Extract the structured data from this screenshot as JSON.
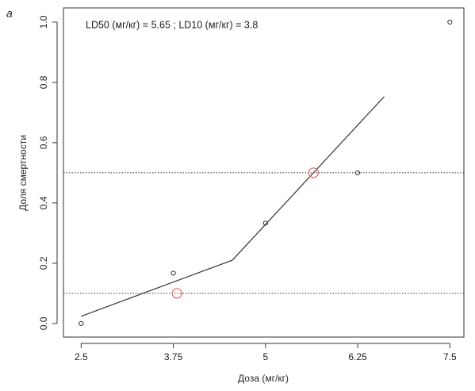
{
  "chart_data": {
    "type": "scatter",
    "panel_label": "a",
    "annotation": "LD50 (мг/кг) = 5.65 ; LD10 (мг/кг) = 3.8",
    "x_label": "Доза (мг/кг)",
    "y_label": "Доля смертности",
    "xlim": [
      2.26,
      7.69
    ],
    "ylim": [
      -0.045,
      1.047
    ],
    "xticks": [
      2.5,
      3.75,
      5,
      6.25,
      7.5
    ],
    "yticks": [
      {
        "value": 0,
        "label": "0.0"
      },
      0.2,
      0.4,
      0.6,
      0.8,
      {
        "value": 1,
        "label": "1.0"
      }
    ],
    "points": {
      "x": [
        2.5,
        3.75,
        5,
        6.25,
        7.5
      ],
      "values": [
        0,
        0.167,
        0.333,
        0.5,
        1.0
      ],
      "color": "#333333"
    },
    "fit": {
      "x": [
        2.5,
        4.55,
        6.61
      ],
      "values": [
        0.024,
        0.21,
        0.753
      ],
      "color": "#333333"
    },
    "ld_points": {
      "x": [
        3.8,
        5.65
      ],
      "values": [
        0.1,
        0.5
      ],
      "color": "#e8706e"
    },
    "hlines": [
      0.5,
      0.1
    ]
  }
}
